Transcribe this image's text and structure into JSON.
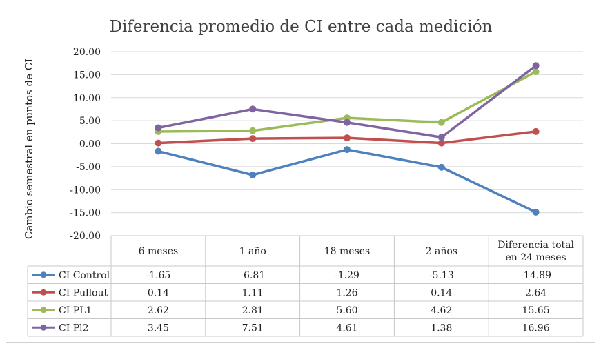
{
  "chart_data": {
    "type": "line",
    "title": "Diferencia promedio de CI entre cada medición",
    "ylabel": "Cambio semestral en puntos de CI",
    "xlabel": "",
    "ylim": [
      -20,
      20
    ],
    "ytick_step": 5,
    "yticks": [
      "20.00",
      "15.00",
      "10.00",
      "5.00",
      "0.00",
      "-5.00",
      "-10.00",
      "-15.00",
      "-20.00"
    ],
    "categories": [
      "6 meses",
      "1 año",
      "18 meses",
      "2 años",
      "Diferencia total en 24 meses"
    ],
    "category_lines": [
      [
        "6 meses"
      ],
      [
        "1 año"
      ],
      [
        "18 meses"
      ],
      [
        "2 años"
      ],
      [
        "Diferencia total",
        "en 24 meses"
      ]
    ],
    "grid": true,
    "legend": "data-table",
    "series": [
      {
        "name": "CI Control",
        "color": "#4f81bd",
        "values": [
          -1.65,
          -6.81,
          -1.29,
          -5.13,
          -14.89
        ],
        "labels": [
          "-1.65",
          "-6.81",
          "-1.29",
          "-5.13",
          "-14.89"
        ]
      },
      {
        "name": "CI Pullout",
        "color": "#c0504d",
        "values": [
          0.14,
          1.11,
          1.26,
          0.14,
          2.64
        ],
        "labels": [
          "0.14",
          "1.11",
          "1.26",
          "0.14",
          "2.64"
        ]
      },
      {
        "name": "CI PL1",
        "color": "#9bbb59",
        "values": [
          2.62,
          2.81,
          5.6,
          4.62,
          15.65
        ],
        "labels": [
          "2.62",
          "2.81",
          "5.60",
          "4.62",
          "15.65"
        ]
      },
      {
        "name": "CI Pl2",
        "color": "#8064a2",
        "values": [
          3.45,
          7.51,
          4.61,
          1.38,
          16.96
        ],
        "labels": [
          "3.45",
          "7.51",
          "4.61",
          "1.38",
          "16.96"
        ]
      }
    ]
  }
}
